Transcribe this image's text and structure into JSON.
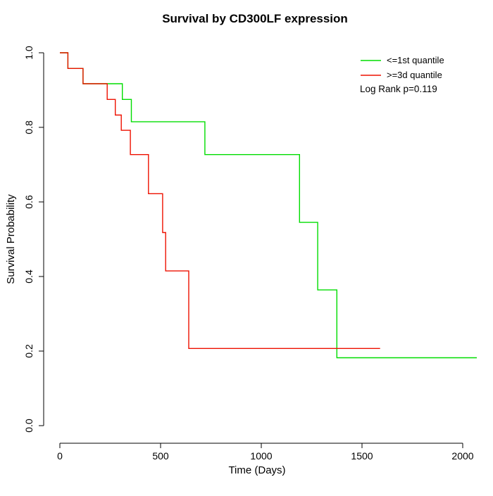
{
  "chart_data": {
    "type": "line",
    "subtype": "kaplan-meier-step",
    "title": "Survival by CD300LF expression",
    "xlabel": "Time (Days)",
    "ylabel": "Survival Probability",
    "xlim": [
      0,
      2000
    ],
    "ylim": [
      0.0,
      1.0
    ],
    "xticks": [
      0,
      500,
      1000,
      1500,
      2000
    ],
    "xtick_labels": [
      "0",
      "500",
      "1000",
      "1500",
      "2000"
    ],
    "yticks": [
      0.0,
      0.2,
      0.4,
      0.6,
      0.8,
      1.0
    ],
    "ytick_labels": [
      "0.0",
      "0.2",
      "0.4",
      "0.6",
      "0.8",
      "1.0"
    ],
    "grid": false,
    "legend_position": "top-right",
    "annotation": "Log Rank p=0.119",
    "axis_color": "#000000",
    "series": [
      {
        "name": "<=1st quantile",
        "color": "#00dd00",
        "points": [
          [
            0,
            1.0
          ],
          [
            40,
            0.958
          ],
          [
            115,
            0.917
          ],
          [
            310,
            0.875
          ],
          [
            355,
            0.815
          ],
          [
            720,
            0.727
          ],
          [
            1190,
            0.545
          ],
          [
            1280,
            0.364
          ],
          [
            1375,
            0.182
          ],
          [
            2070,
            0.182
          ]
        ]
      },
      {
        "name": ">=3d quantile",
        "color": "#ee1100",
        "points": [
          [
            0,
            1.0
          ],
          [
            40,
            0.958
          ],
          [
            115,
            0.917
          ],
          [
            235,
            0.875
          ],
          [
            275,
            0.833
          ],
          [
            305,
            0.792
          ],
          [
            350,
            0.727
          ],
          [
            440,
            0.622
          ],
          [
            510,
            0.518
          ],
          [
            525,
            0.415
          ],
          [
            640,
            0.207
          ],
          [
            1590,
            0.207
          ]
        ]
      }
    ]
  }
}
